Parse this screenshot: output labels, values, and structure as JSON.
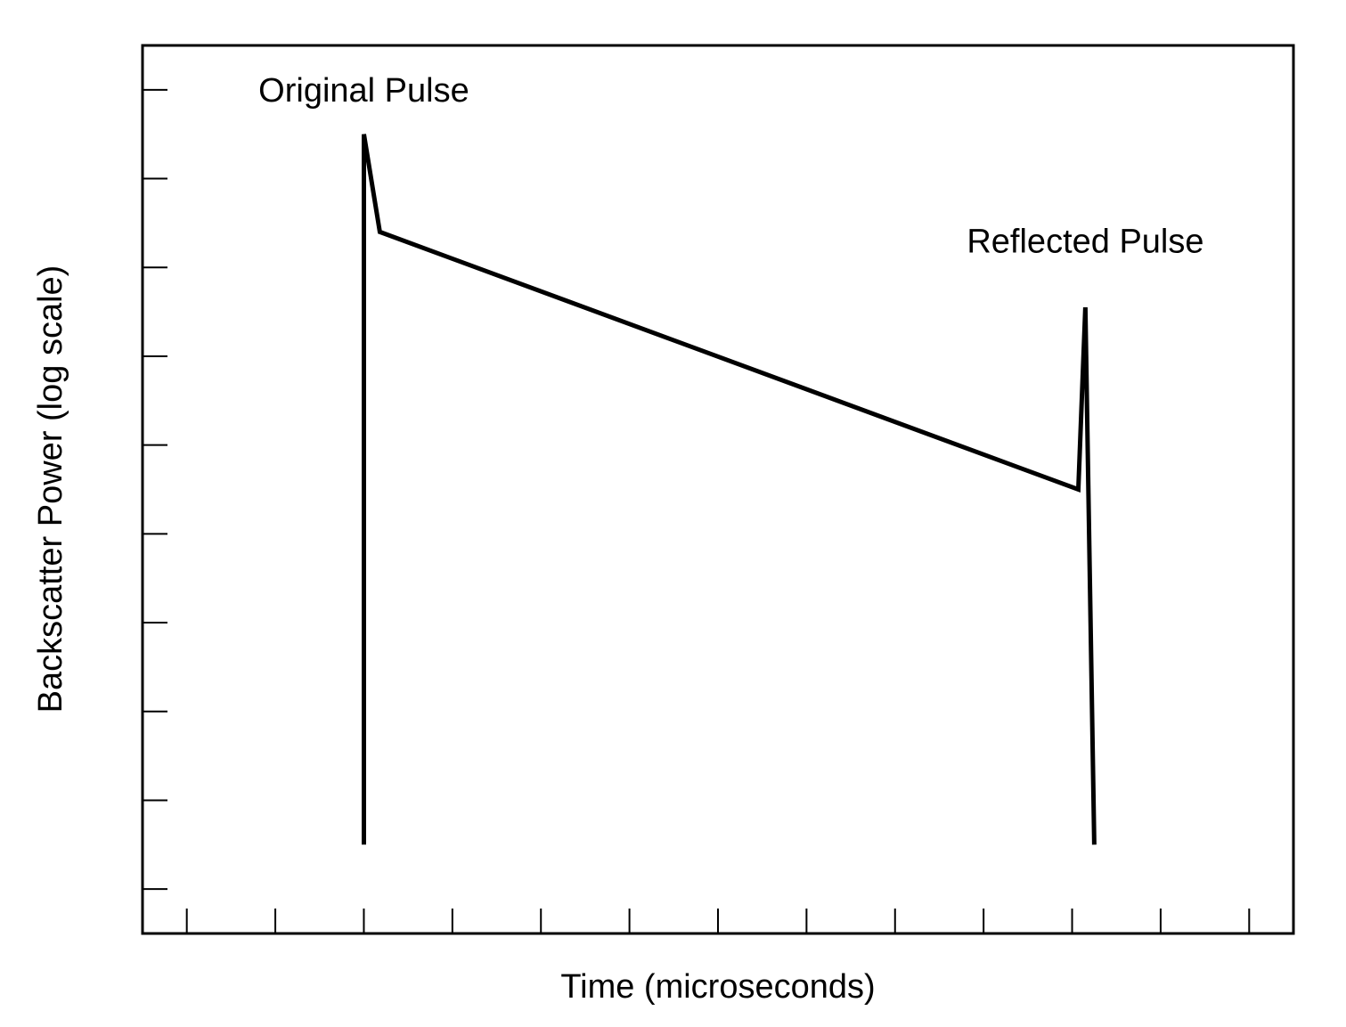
{
  "chart_data": {
    "type": "line",
    "title": "",
    "xlabel": "Time (microseconds)",
    "ylabel": "Backscatter Power (log scale)",
    "xlim": [
      0,
      13
    ],
    "ylim": [
      0,
      10
    ],
    "x_ticks_count": 13,
    "y_ticks_count": 10,
    "grid": false,
    "legend": "none",
    "tick_labels_shown": false,
    "line_color": "#000000",
    "series": [
      {
        "points": [
          {
            "x": 2.5,
            "y": 1.0
          },
          {
            "x": 2.5,
            "y": 9.0
          },
          {
            "x": 2.68,
            "y": 7.9
          },
          {
            "x": 10.57,
            "y": 5.0
          },
          {
            "x": 10.65,
            "y": 7.05
          },
          {
            "x": 10.75,
            "y": 1.0
          }
        ]
      }
    ],
    "annotations": [
      {
        "text": "Original Pulse",
        "x": 2.5,
        "y": 9.5
      },
      {
        "text": "Reflected Pulse",
        "x": 10.65,
        "y": 7.8
      }
    ]
  }
}
